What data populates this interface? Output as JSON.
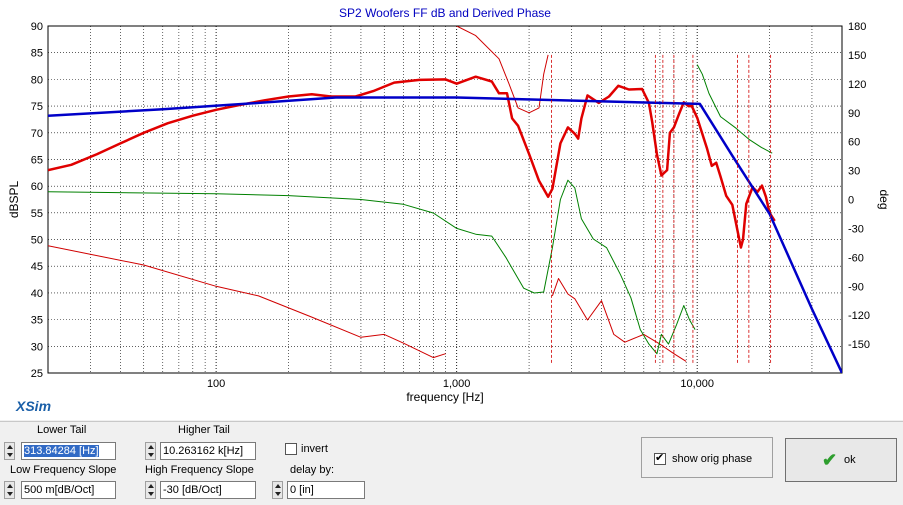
{
  "chart_data": {
    "type": "line",
    "title": "SP2 Woofers FF dB and Derived Phase",
    "xlabel": "frequency [Hz]",
    "ylabel": "dBSPL",
    "y2label": "deg",
    "xscale": "log",
    "xlim": [
      20,
      40000
    ],
    "ylim": [
      25,
      90
    ],
    "y2lim": [
      -180,
      180
    ],
    "x_tick_labels": [
      "100",
      "1,000",
      "10,000"
    ],
    "y_tick_labels": [
      "90",
      "85",
      "80",
      "75",
      "70",
      "65",
      "60",
      "55",
      "50",
      "45",
      "40",
      "35",
      "30",
      "25"
    ],
    "y2_tick_labels": [
      "180",
      "150",
      "120",
      "90",
      "60",
      "30",
      "0",
      "-30",
      "-60",
      "-90",
      "-120",
      "-150"
    ],
    "grid": true,
    "series": [
      {
        "role": "spl",
        "color": "#e00000",
        "width": 2.5,
        "points": [
          [
            20,
            63
          ],
          [
            25,
            64
          ],
          [
            32,
            66
          ],
          [
            40,
            68
          ],
          [
            50,
            70
          ],
          [
            63,
            71.8
          ],
          [
            80,
            73.2
          ],
          [
            100,
            74.3
          ],
          [
            125,
            75.2
          ],
          [
            160,
            76.1
          ],
          [
            200,
            76.8
          ],
          [
            250,
            77.2
          ],
          [
            300,
            76.8
          ],
          [
            380,
            76.8
          ],
          [
            450,
            77.8
          ],
          [
            550,
            79.4
          ],
          [
            700,
            79.9
          ],
          [
            900,
            80
          ],
          [
            1000,
            79.2
          ],
          [
            1200,
            80.5
          ],
          [
            1400,
            79.6
          ],
          [
            1500,
            77.4
          ],
          [
            1620,
            77.4
          ],
          [
            1700,
            72.7
          ],
          [
            1800,
            71.3
          ],
          [
            2000,
            66
          ],
          [
            2200,
            61
          ],
          [
            2400,
            58
          ],
          [
            2500,
            59.5
          ],
          [
            2700,
            68
          ],
          [
            2900,
            71
          ],
          [
            3100,
            69.8
          ],
          [
            3200,
            68.9
          ],
          [
            3300,
            72.7
          ],
          [
            3500,
            77
          ],
          [
            3900,
            75.6
          ],
          [
            4300,
            76.8
          ],
          [
            4700,
            78.8
          ],
          [
            5200,
            78.1
          ],
          [
            5900,
            78.2
          ],
          [
            6300,
            75.6
          ],
          [
            6500,
            72
          ],
          [
            6800,
            66
          ],
          [
            7100,
            62
          ],
          [
            7500,
            63
          ],
          [
            7700,
            70
          ],
          [
            8000,
            71
          ],
          [
            8400,
            73.5
          ],
          [
            8800,
            75.7
          ],
          [
            9200,
            75
          ],
          [
            9500,
            75
          ],
          [
            10000,
            72.8
          ],
          [
            11000,
            67
          ],
          [
            11500,
            63.8
          ],
          [
            12000,
            64.4
          ],
          [
            12500,
            61.8
          ],
          [
            13200,
            58.2
          ],
          [
            14000,
            56.5
          ],
          [
            15200,
            48.5
          ],
          [
            15500,
            50
          ],
          [
            16000,
            56.7
          ],
          [
            17000,
            59.8
          ],
          [
            17800,
            58.9
          ],
          [
            18600,
            60.1
          ],
          [
            19300,
            58
          ],
          [
            20000,
            55
          ],
          [
            21000,
            53.5
          ]
        ]
      },
      {
        "role": "target",
        "color": "#0000c8",
        "width": 2.5,
        "points": [
          [
            20,
            73.2
          ],
          [
            60,
            74.4
          ],
          [
            150,
            75.6
          ],
          [
            314,
            76.6
          ],
          [
            1000,
            76.6
          ],
          [
            10263,
            75.4
          ],
          [
            14000,
            65.7
          ],
          [
            20000,
            54.8
          ],
          [
            25000,
            45
          ],
          [
            30000,
            37
          ],
          [
            40000,
            25
          ]
        ]
      },
      {
        "role": "orig_phase",
        "color": "#008000",
        "width": 1,
        "axis": "y2",
        "points": [
          [
            20,
            8
          ],
          [
            100,
            6
          ],
          [
            200,
            4
          ],
          [
            400,
            0
          ],
          [
            600,
            -5
          ],
          [
            800,
            -14
          ],
          [
            1000,
            -30
          ],
          [
            1200,
            -36
          ],
          [
            1400,
            -38
          ],
          [
            1600,
            -60
          ],
          [
            1900,
            -92
          ],
          [
            2100,
            -97
          ],
          [
            2300,
            -96
          ],
          [
            2500,
            -50
          ],
          [
            2700,
            0
          ],
          [
            2900,
            20
          ],
          [
            3100,
            12
          ],
          [
            3300,
            -20
          ],
          [
            3700,
            -41
          ],
          [
            4200,
            -50
          ],
          [
            4800,
            -78
          ],
          [
            5300,
            -102
          ],
          [
            5800,
            -135
          ],
          [
            6300,
            -150
          ],
          [
            6800,
            -160
          ],
          [
            7100,
            -140
          ],
          [
            7600,
            -150
          ],
          [
            8200,
            -130
          ],
          [
            8800,
            -110
          ],
          [
            9300,
            -125
          ],
          [
            9800,
            -135
          ],
          [
            10000,
            140
          ],
          [
            10500,
            130
          ],
          [
            11200,
            110
          ],
          [
            12500,
            86
          ],
          [
            14500,
            74
          ],
          [
            16500,
            62
          ],
          [
            18500,
            54
          ],
          [
            20500,
            48
          ]
        ]
      },
      {
        "role": "derived_phase",
        "color": "#d00000",
        "width": 1,
        "axis": "y2",
        "points": [
          [
            20,
            -48
          ],
          [
            50,
            -68
          ],
          [
            100,
            -90
          ],
          [
            150,
            -100
          ],
          [
            250,
            -122
          ],
          [
            400,
            -143
          ],
          [
            500,
            -140
          ],
          [
            600,
            -149
          ],
          [
            800,
            -164
          ],
          [
            900,
            -160
          ],
          [
            1000,
            180
          ],
          [
            1200,
            170
          ],
          [
            1500,
            146
          ],
          [
            1650,
            120
          ],
          [
            1800,
            95
          ],
          [
            2000,
            90
          ],
          [
            2200,
            95
          ],
          [
            2300,
            130
          ],
          [
            2400,
            150
          ],
          [
            2500,
            -100
          ],
          [
            2650,
            -82
          ],
          [
            2900,
            -98
          ],
          [
            3100,
            -103
          ],
          [
            3500,
            -125
          ],
          [
            4000,
            -105
          ],
          [
            4500,
            -140
          ],
          [
            5000,
            -148
          ],
          [
            6000,
            -140
          ],
          [
            7000,
            -150
          ],
          [
            8000,
            -160
          ],
          [
            9000,
            -168
          ]
        ]
      }
    ],
    "x_ticks_light": [
      20,
      30,
      40,
      50,
      60,
      70,
      80,
      90,
      100,
      200,
      300,
      400,
      500,
      600,
      700,
      800,
      900,
      1000,
      2000,
      3000,
      4000,
      5000,
      6000,
      7000,
      8000,
      9000,
      10000,
      20000,
      30000,
      40000
    ]
  },
  "watermark": "XSim",
  "controls": {
    "lower_tail": {
      "label": "Lower Tail",
      "value": "313.84284 [Hz]"
    },
    "higher_tail": {
      "label": "Higher Tail",
      "value": "10.263162 k[Hz]"
    },
    "invert": {
      "label": "invert",
      "checked": false
    },
    "low_freq_slope": {
      "label": "Low Frequency Slope",
      "value": "500 m[dB/Oct]"
    },
    "high_freq_slope": {
      "label": "High Frequency Slope",
      "value": "-30 [dB/Oct]"
    },
    "delay": {
      "label": "delay by:",
      "value": "0 [in]"
    },
    "show_orig_phase": {
      "label": "show orig phase",
      "checked": true
    },
    "ok_button": {
      "label": "ok"
    }
  },
  "colors": {
    "accent_blue": "#0000c8",
    "title_blue": "#0000c0",
    "spl_red": "#e00000",
    "phase_green": "#008000"
  }
}
